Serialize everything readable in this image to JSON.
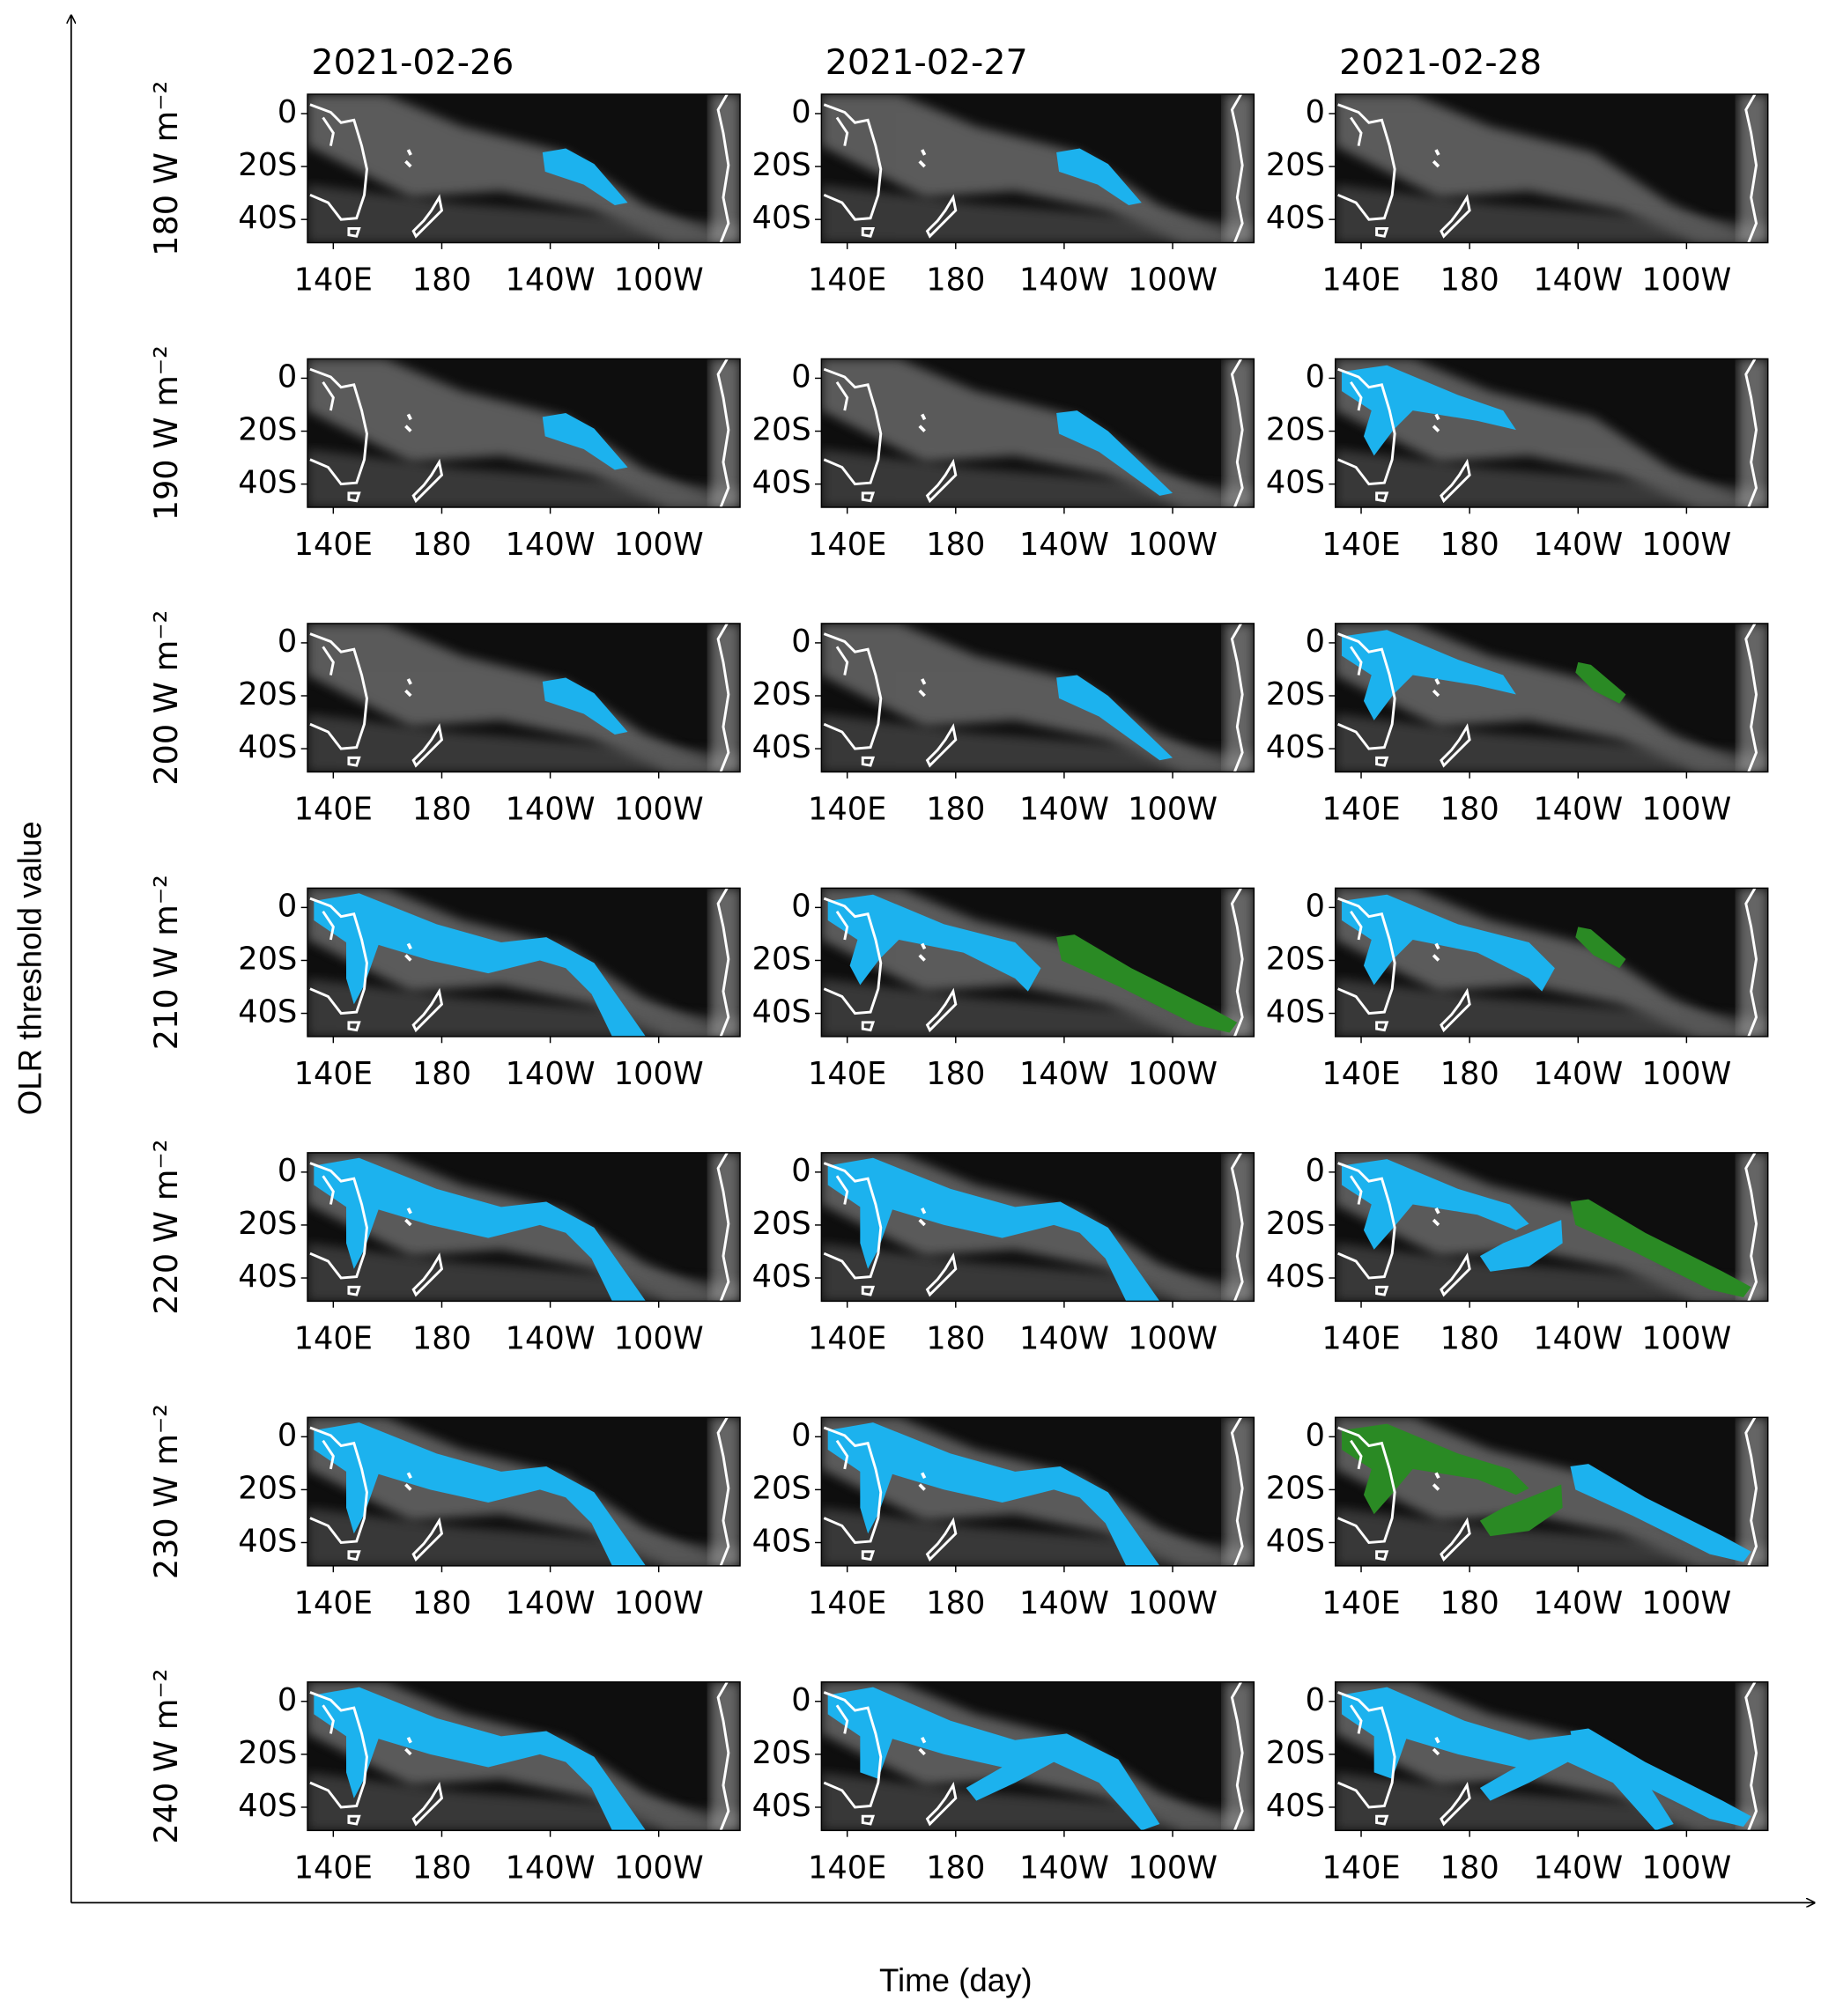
{
  "y_axis_label": "OLR threshold value",
  "x_axis_label": "Time (day)",
  "columns": [
    "2021-02-26",
    "2021-02-27",
    "2021-02-28"
  ],
  "rows": [
    "180 W m⁻²",
    "190 W m⁻²",
    "200 W m⁻²",
    "210 W m⁻²",
    "220 W m⁻²",
    "230 W m⁻²",
    "240 W m⁻²"
  ],
  "x_tick_labels": [
    "140E",
    "180",
    "140W",
    "100W"
  ],
  "y_tick_labels": [
    "0",
    "20S",
    "40S"
  ]
}
